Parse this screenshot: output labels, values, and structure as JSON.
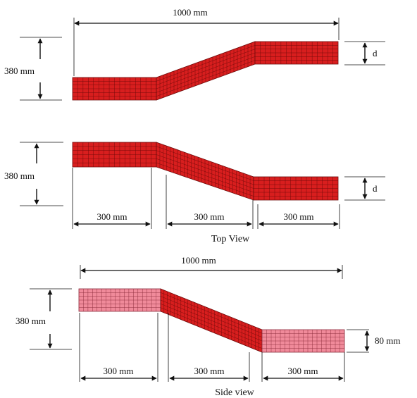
{
  "labels": {
    "total_length": "1000 mm",
    "width": "380 mm",
    "offset": "d",
    "segment": "300 mm",
    "thickness": "80 mm"
  },
  "captions": {
    "top": "Top View",
    "side": "Side view"
  },
  "colors": {
    "mesh_fill": "#d81e1e",
    "mesh_line": "#6e0a0a",
    "side_end_fill": "#f08a9a",
    "side_end_line": "#8a2a3a",
    "dimension_line": "#111111"
  }
}
